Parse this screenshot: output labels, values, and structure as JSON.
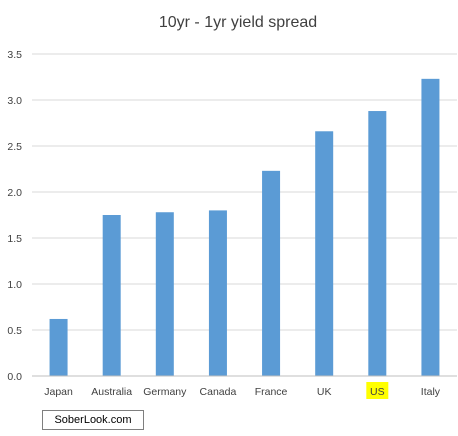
{
  "chart_data": {
    "type": "bar",
    "title": "10yr - 1yr yield spread",
    "categories": [
      "Japan",
      "Australia",
      "Germany",
      "Canada",
      "France",
      "UK",
      "US",
      "Italy"
    ],
    "values": [
      0.62,
      1.75,
      1.78,
      1.8,
      2.23,
      2.66,
      2.88,
      3.23
    ],
    "ylim": [
      0,
      3.5
    ],
    "yticks": [
      "0.0",
      "0.5",
      "1.0",
      "1.5",
      "2.0",
      "2.5",
      "3.0",
      "3.5"
    ],
    "grid": true,
    "bar_color": "#5b9bd5",
    "highlight_category": "US",
    "highlight_color": "#ffff00"
  },
  "source_label": "SoberLook.com"
}
